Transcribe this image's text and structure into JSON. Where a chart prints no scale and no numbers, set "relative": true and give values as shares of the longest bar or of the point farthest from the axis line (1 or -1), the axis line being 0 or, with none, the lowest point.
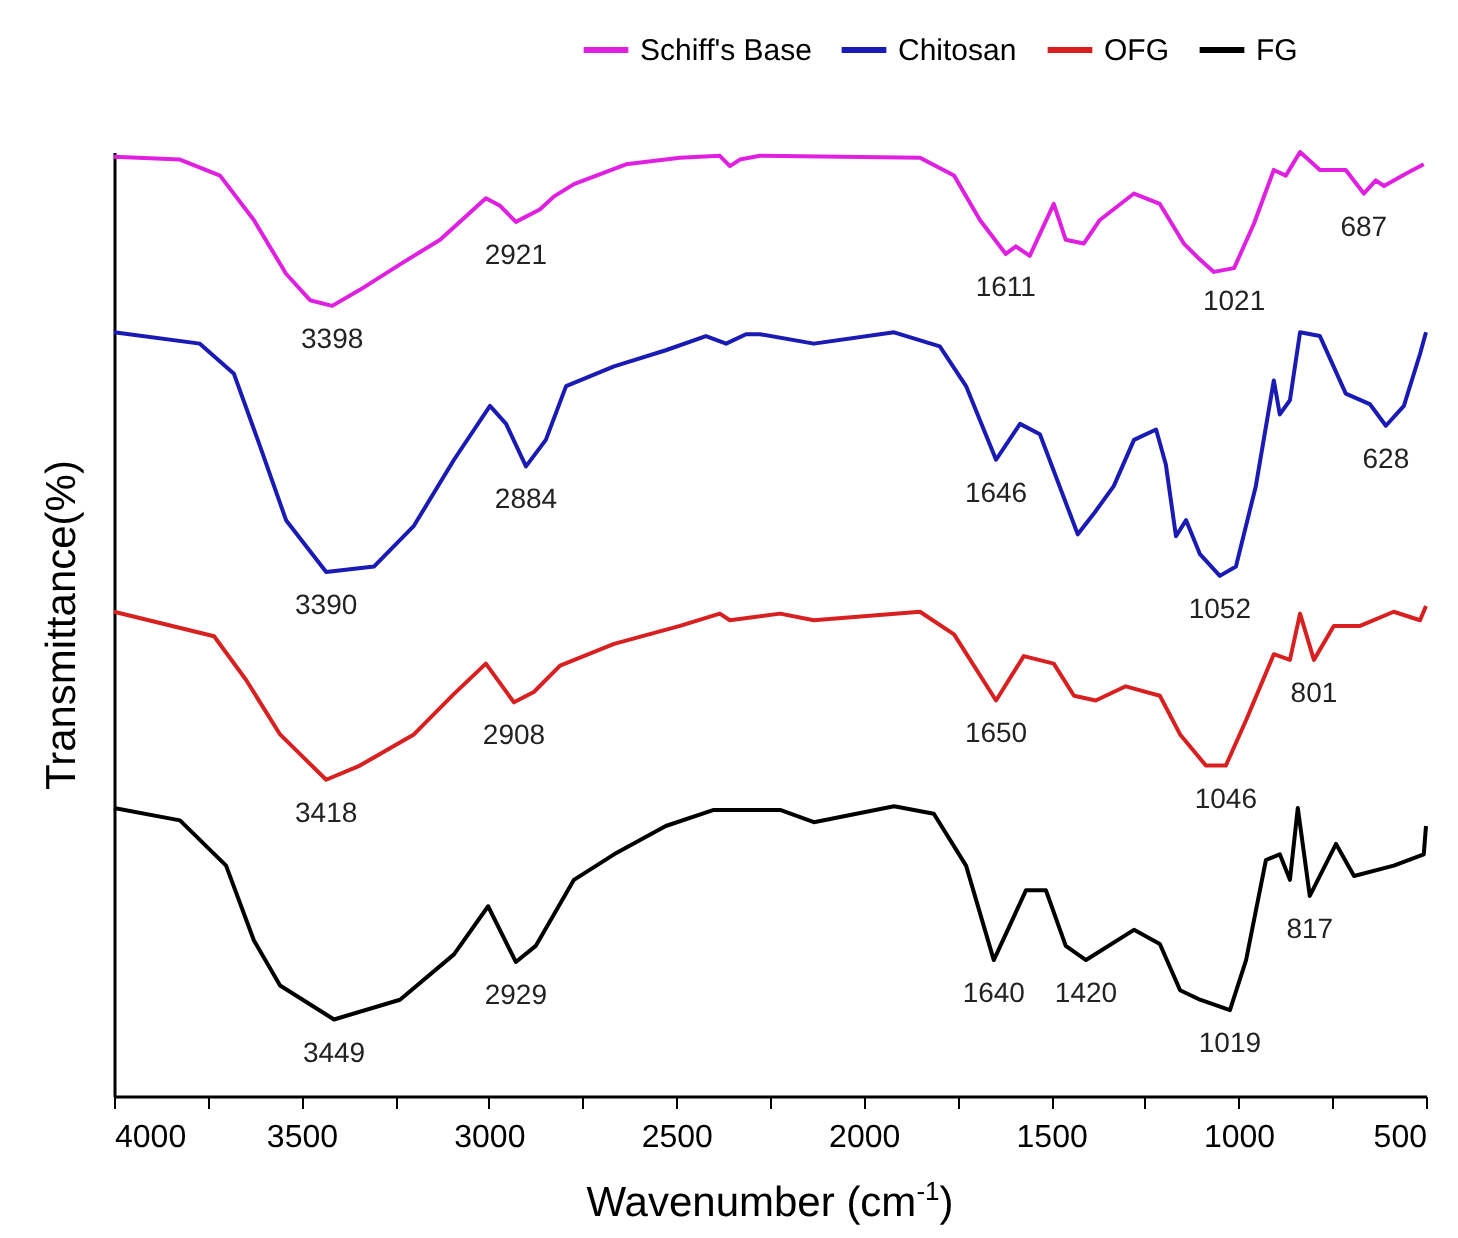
{
  "chart_data": {
    "type": "line",
    "relative": true,
    "xlabel": "Wavenumber (cm$^{-1}$)",
    "ylabel": "Transmittance(%)",
    "xlim": [
      4000,
      500
    ],
    "xticks": [
      4000,
      {
        "value": 3750,
        "label": null
      },
      3500,
      {
        "value": 3250,
        "label": null
      },
      3000,
      {
        "value": 2750,
        "label": null
      },
      2500,
      {
        "value": 2250,
        "label": null
      },
      2000,
      {
        "value": 1750,
        "label": null
      },
      1500,
      {
        "value": 1250,
        "label": null
      },
      1000,
      {
        "value": 750,
        "label": null
      },
      500
    ],
    "legend": "top right",
    "series": [
      {
        "name": "Schiff's Base",
        "color": "#e020e0",
        "x": [
          4000,
          3824,
          3717,
          3627,
          3541,
          3477,
          3418,
          3344,
          3237,
          3130,
          3008,
          2970,
          2928,
          2864,
          2826,
          2773,
          2634,
          2490,
          2384,
          2357,
          2330,
          2277,
          1850,
          1759,
          1690,
          1621,
          1594,
          1557,
          1493,
          1461,
          1413,
          1370,
          1279,
          1210,
          1146,
          1103,
          1066,
          1012,
          959,
          906,
          874,
          836,
          783,
          714,
          666,
          634,
          612,
          554,
          506
        ],
        "values": [
          0.995,
          0.992,
          0.975,
          0.928,
          0.871,
          0.843,
          0.837,
          0.854,
          0.881,
          0.907,
          0.951,
          0.943,
          0.926,
          0.939,
          0.953,
          0.966,
          0.987,
          0.994,
          0.996,
          0.985,
          0.992,
          0.996,
          0.994,
          0.975,
          0.928,
          0.892,
          0.9,
          0.89,
          0.945,
          0.907,
          0.903,
          0.928,
          0.956,
          0.945,
          0.903,
          0.886,
          0.873,
          0.877,
          0.924,
          0.981,
          0.975,
          1,
          0.981,
          0.981,
          0.956,
          0.97,
          0.964,
          0.977,
          0.987
        ]
      },
      {
        "name": "Chitosan",
        "color": "#1a1ab4",
        "x": [
          4000,
          3771,
          3680,
          3611,
          3541,
          3434,
          3306,
          3200,
          3093,
          2997,
          2954,
          2901,
          2848,
          2794,
          2666,
          2528,
          2421,
          2367,
          2314,
          2277,
          2133,
          1919,
          1797,
          1727,
          1647,
          1583,
          1530,
          1429,
          1386,
          1333,
          1279,
          1220,
          1194,
          1167,
          1140,
          1103,
          1050,
          1007,
          954,
          906,
          890,
          863,
          836,
          783,
          714,
          650,
          607,
          559,
          516,
          500
        ],
        "values": [
          0.809,
          0.797,
          0.765,
          0.689,
          0.61,
          0.555,
          0.561,
          0.604,
          0.674,
          0.731,
          0.712,
          0.667,
          0.695,
          0.752,
          0.773,
          0.79,
          0.805,
          0.797,
          0.807,
          0.807,
          0.797,
          0.809,
          0.794,
          0.752,
          0.674,
          0.712,
          0.701,
          0.595,
          0.617,
          0.646,
          0.695,
          0.706,
          0.669,
          0.593,
          0.61,
          0.574,
          0.551,
          0.561,
          0.646,
          0.758,
          0.722,
          0.737,
          0.809,
          0.805,
          0.744,
          0.733,
          0.71,
          0.731,
          0.786,
          0.809
        ]
      },
      {
        "name": "OFG",
        "color": "#d92020",
        "x": [
          4000,
          3733,
          3648,
          3557,
          3434,
          3344,
          3200,
          3093,
          3008,
          2933,
          2880,
          2810,
          2666,
          2490,
          2384,
          2357,
          2223,
          2133,
          1850,
          1759,
          1647,
          1573,
          1493,
          1439,
          1381,
          1301,
          1210,
          1156,
          1087,
          1034,
          980,
          906,
          863,
          836,
          799,
          746,
          676,
          586,
          516,
          500
        ],
        "values": [
          0.513,
          0.487,
          0.441,
          0.383,
          0.335,
          0.35,
          0.383,
          0.426,
          0.458,
          0.417,
          0.428,
          0.456,
          0.479,
          0.498,
          0.511,
          0.504,
          0.511,
          0.504,
          0.513,
          0.489,
          0.419,
          0.466,
          0.458,
          0.424,
          0.419,
          0.434,
          0.424,
          0.383,
          0.35,
          0.35,
          0.398,
          0.468,
          0.462,
          0.511,
          0.462,
          0.498,
          0.498,
          0.513,
          0.504,
          0.519
        ]
      },
      {
        "name": "FG",
        "color": "#000000",
        "x": [
          4000,
          3824,
          3701,
          3627,
          3557,
          3413,
          3237,
          3093,
          3002,
          2928,
          2875,
          2773,
          2666,
          2528,
          2400,
          2223,
          2133,
          1919,
          1813,
          1727,
          1653,
          1567,
          1514,
          1461,
          1407,
          1279,
          1210,
          1156,
          1103,
          1023,
          980,
          927,
          890,
          863,
          842,
          810,
          740,
          692,
          586,
          506,
          500
        ],
        "values": [
          0.305,
          0.292,
          0.244,
          0.165,
          0.117,
          0.081,
          0.102,
          0.15,
          0.201,
          0.142,
          0.159,
          0.229,
          0.256,
          0.286,
          0.303,
          0.303,
          0.29,
          0.307,
          0.299,
          0.244,
          0.144,
          0.218,
          0.218,
          0.159,
          0.144,
          0.176,
          0.161,
          0.112,
          0.102,
          0.091,
          0.144,
          0.25,
          0.256,
          0.229,
          0.305,
          0.212,
          0.267,
          0.233,
          0.244,
          0.256,
          0.286
        ]
      }
    ],
    "annotations": [
      {
        "text": "3398",
        "x": 3418,
        "y": 0.837
      },
      {
        "text": "2921",
        "x": 2928,
        "y": 0.926
      },
      {
        "text": "1611",
        "x": 1621,
        "y": 0.892
      },
      {
        "text": "1021",
        "x": 1012,
        "y": 0.877
      },
      {
        "text": "687",
        "x": 666,
        "y": 0.956
      },
      {
        "text": "3390",
        "x": 3434,
        "y": 0.555
      },
      {
        "text": "2884",
        "x": 2901,
        "y": 0.667
      },
      {
        "text": "1646",
        "x": 1647,
        "y": 0.674
      },
      {
        "text": "1052",
        "x": 1050,
        "y": 0.551
      },
      {
        "text": "628",
        "x": 607,
        "y": 0.71
      },
      {
        "text": "3418",
        "x": 3434,
        "y": 0.335
      },
      {
        "text": "2908",
        "x": 2933,
        "y": 0.417
      },
      {
        "text": "1650",
        "x": 1647,
        "y": 0.419
      },
      {
        "text": "1046",
        "x": 1034,
        "y": 0.35
      },
      {
        "text": "801",
        "x": 799,
        "y": 0.462
      },
      {
        "text": "3449",
        "x": 3413,
        "y": 0.081
      },
      {
        "text": "2929",
        "x": 2928,
        "y": 0.142
      },
      {
        "text": "1640",
        "x": 1653,
        "y": 0.144
      },
      {
        "text": "1420",
        "x": 1407,
        "y": 0.144
      },
      {
        "text": "1019",
        "x": 1023,
        "y": 0.091
      },
      {
        "text": "817",
        "x": 810,
        "y": 0.212
      }
    ]
  }
}
